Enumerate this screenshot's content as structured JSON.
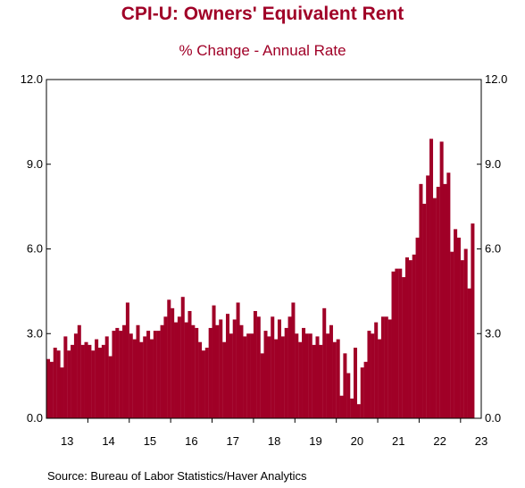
{
  "title": "CPI-U: Owners' Equivalent Rent",
  "subtitle": "% Change - Annual Rate",
  "source": "Source:  Bureau of Labor Statistics/Haver Analytics",
  "colors": {
    "bar": "#a00027",
    "title": "#a00027",
    "axis": "#000000"
  },
  "chart_data": {
    "type": "bar",
    "frequency": "monthly",
    "start": "2013-01",
    "end": "2023-05",
    "ylim": [
      0,
      12
    ],
    "yticks": [
      "0.0",
      "3.0",
      "6.0",
      "9.0",
      "12.0"
    ],
    "xticks": [
      "13",
      "14",
      "15",
      "16",
      "17",
      "18",
      "19",
      "20",
      "21",
      "22",
      "23"
    ],
    "grid": false,
    "series": [
      {
        "values": [
          2.1,
          2.0,
          2.5,
          2.4,
          1.8,
          2.9,
          2.4,
          2.6,
          3.0,
          3.3,
          2.6,
          2.7,
          2.6,
          2.4,
          2.8,
          2.5,
          2.6,
          2.9,
          2.2,
          3.1,
          3.2,
          3.1,
          3.3,
          4.1,
          3.0,
          2.8,
          3.3,
          2.7,
          2.9,
          3.1,
          2.8,
          3.1,
          3.1,
          3.3,
          3.6,
          4.2,
          3.9,
          3.4,
          3.6,
          4.3,
          3.4,
          3.8,
          3.3,
          3.2,
          2.7,
          2.4,
          2.5,
          3.2,
          4.0,
          3.3,
          3.5,
          2.7,
          3.7,
          3.0,
          3.5,
          4.1,
          3.3,
          2.9,
          3.0,
          3.0,
          3.8,
          3.6,
          2.3,
          3.1,
          2.9,
          3.6,
          2.8,
          3.5,
          2.9,
          3.2,
          3.6,
          4.1,
          3.0,
          2.7,
          3.2,
          3.0,
          3.0,
          2.6,
          2.9,
          2.6,
          3.9,
          3.0,
          3.3,
          2.7,
          2.8,
          0.8,
          2.3,
          1.6,
          0.7,
          2.5,
          0.5,
          1.8,
          2.0,
          3.1,
          3.0,
          3.4,
          2.8,
          3.6,
          3.6,
          3.5,
          5.2,
          5.3,
          5.3,
          5.0,
          5.7,
          5.6,
          5.8,
          6.4,
          8.3,
          7.6,
          8.6,
          9.9,
          7.8,
          8.2,
          9.8,
          8.3,
          8.7,
          5.9,
          6.7,
          6.4,
          5.6,
          6.0,
          4.6,
          6.9
        ]
      }
    ]
  }
}
